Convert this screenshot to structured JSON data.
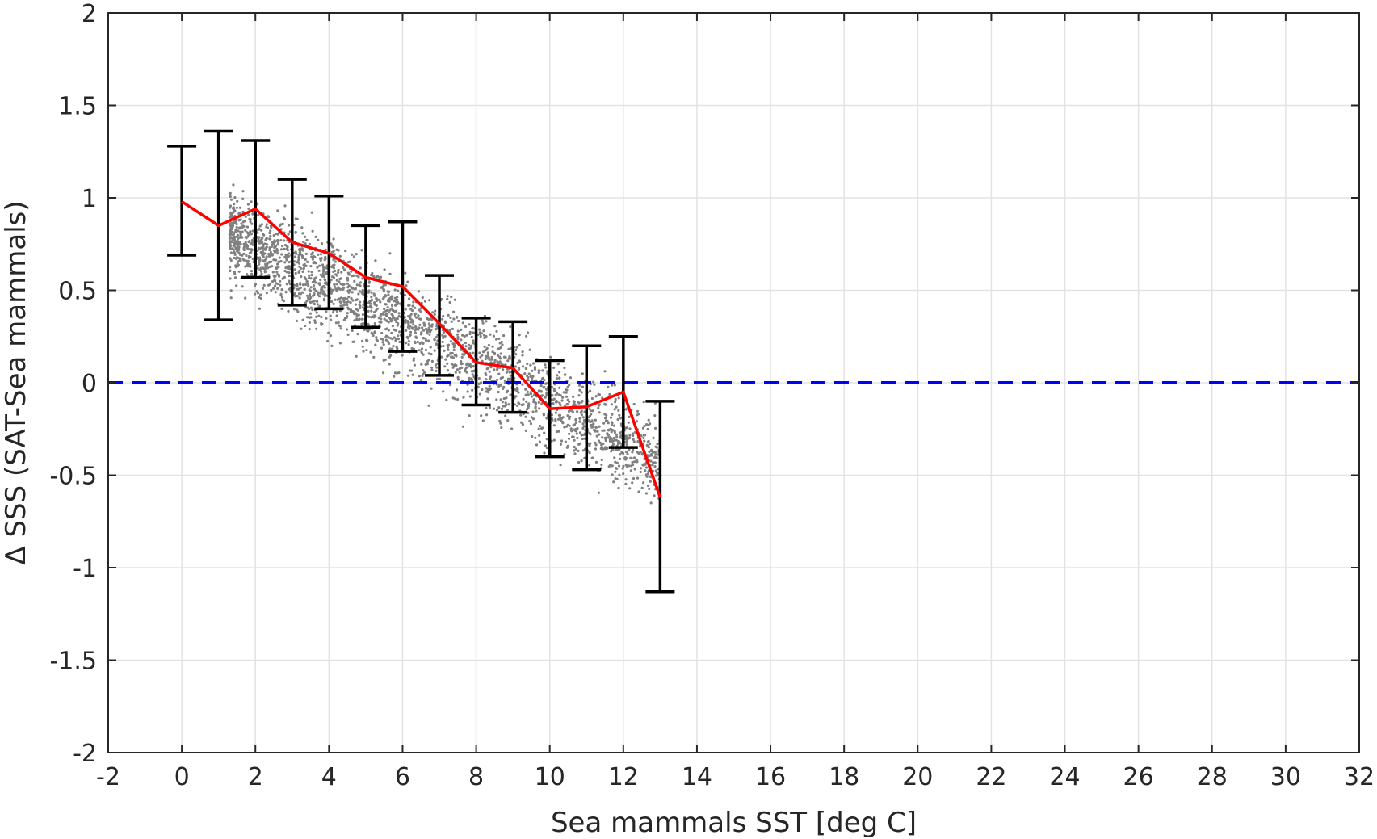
{
  "chart_data": {
    "type": "scatter",
    "xlabel": "Sea mammals SST [deg C]",
    "ylabel": "Δ SSS (SAT-Sea mammals)",
    "xlim": [
      -2,
      32
    ],
    "ylim": [
      -2,
      2
    ],
    "xticks": [
      -2,
      0,
      2,
      4,
      6,
      8,
      10,
      12,
      14,
      16,
      18,
      20,
      22,
      24,
      26,
      28,
      30,
      32
    ],
    "yticks": [
      -2,
      -1.5,
      -1,
      -0.5,
      0,
      0.5,
      1,
      1.5,
      2
    ],
    "xtick_labels": [
      "-2",
      "0",
      "2",
      "4",
      "6",
      "8",
      "10",
      "12",
      "14",
      "16",
      "18",
      "20",
      "22",
      "24",
      "26",
      "28",
      "30",
      "32"
    ],
    "ytick_labels": [
      "-2",
      "-1.5",
      "-1",
      "-0.5",
      "0",
      "0.5",
      "1",
      "1.5",
      "2"
    ],
    "grid": true,
    "series": [
      {
        "kind": "scatter",
        "color": "#808080",
        "note_points": "dense cloud of individual observations",
        "x_range": [
          1.3,
          13
        ],
        "trend_slope": -0.105,
        "trend_intercept": 0.95
      },
      {
        "kind": "line",
        "color": "#ff0000",
        "x": [
          0,
          1,
          2,
          3,
          4,
          5,
          6,
          7,
          8,
          9,
          10,
          11,
          12,
          13
        ],
        "y": [
          0.98,
          0.85,
          0.94,
          0.76,
          0.7,
          0.57,
          0.52,
          0.32,
          0.11,
          0.08,
          -0.14,
          -0.13,
          -0.05,
          -0.62
        ]
      },
      {
        "kind": "errorbar",
        "color": "#000000",
        "x": [
          0,
          1,
          2,
          3,
          4,
          5,
          6,
          7,
          8,
          9,
          10,
          11,
          12,
          13
        ],
        "lower": [
          0.69,
          0.34,
          0.57,
          0.42,
          0.4,
          0.3,
          0.17,
          0.04,
          -0.12,
          -0.16,
          -0.4,
          -0.47,
          -0.35,
          -1.13
        ],
        "upper": [
          1.28,
          1.36,
          1.31,
          1.1,
          1.01,
          0.85,
          0.87,
          0.58,
          0.35,
          0.33,
          0.12,
          0.2,
          0.25,
          -0.1
        ]
      },
      {
        "kind": "hline",
        "color": "#0000ff",
        "y": 0,
        "style": "dashed"
      }
    ]
  }
}
